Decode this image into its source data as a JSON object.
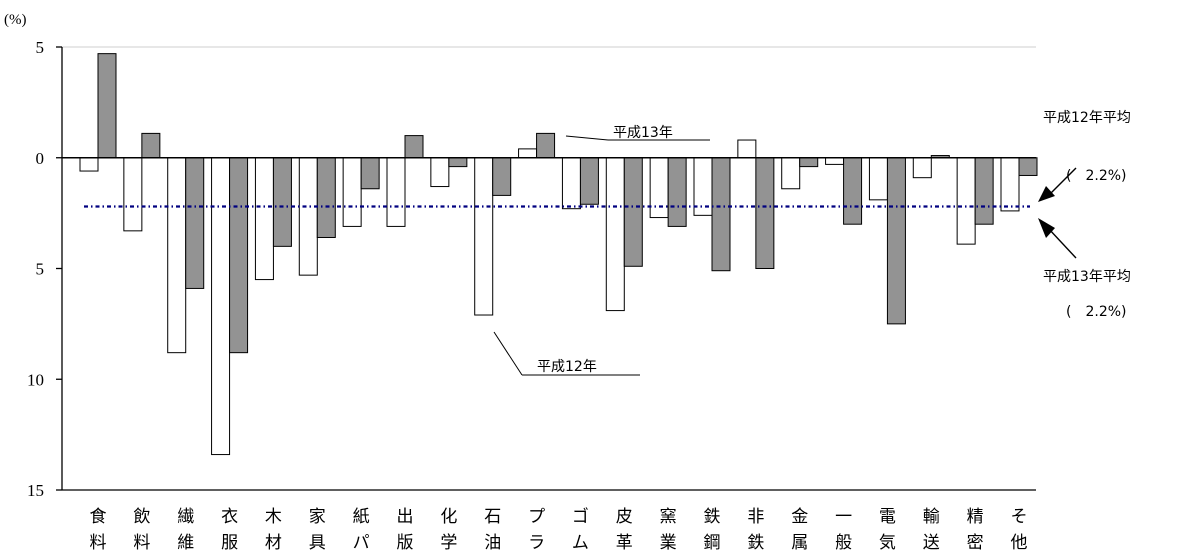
{
  "chart_data": {
    "type": "bar",
    "unit_label": "(%)",
    "y_tick_labels": [
      "5",
      "0",
      "5",
      "10",
      "15"
    ],
    "y_tick_values": [
      5,
      0,
      -5,
      -10,
      -15
    ],
    "ylim": [
      -15,
      5
    ],
    "grid": false,
    "categories": [
      [
        "食",
        "料"
      ],
      [
        "飲",
        "料"
      ],
      [
        "繊",
        "維"
      ],
      [
        "衣",
        "服"
      ],
      [
        "木",
        "材"
      ],
      [
        "家",
        "具"
      ],
      [
        "紙",
        "パ"
      ],
      [
        "出",
        "版"
      ],
      [
        "化",
        "学"
      ],
      [
        "石",
        "油"
      ],
      [
        "プ",
        "ラ"
      ],
      [
        "ゴ",
        "ム"
      ],
      [
        "皮",
        "革"
      ],
      [
        "窯",
        "業"
      ],
      [
        "鉄",
        "鋼"
      ],
      [
        "非",
        "鉄"
      ],
      [
        "金",
        "属"
      ],
      [
        "一",
        "般"
      ],
      [
        "電",
        "気"
      ],
      [
        "輸",
        "送"
      ],
      [
        "精",
        "密"
      ],
      [
        "そ",
        "他"
      ]
    ],
    "series": [
      {
        "name": "平成12年",
        "color": "#ffffff",
        "values": [
          -0.6,
          -3.3,
          -8.8,
          -13.4,
          -5.5,
          -5.3,
          -3.1,
          -3.1,
          -1.3,
          -7.1,
          0.4,
          -2.3,
          -6.9,
          -2.7,
          -2.6,
          0.8,
          -1.4,
          -0.3,
          -1.9,
          -0.9,
          -3.9,
          -2.4
        ]
      },
      {
        "name": "平成13年",
        "color": "#939393",
        "values": [
          4.7,
          1.1,
          -5.9,
          -8.8,
          -4.0,
          -3.6,
          -1.4,
          1.0,
          -0.4,
          -1.7,
          1.1,
          -2.1,
          -4.9,
          -3.1,
          -5.1,
          -5.0,
          -0.4,
          -3.0,
          -7.5,
          0.1,
          -3.0,
          -0.8
        ]
      }
    ],
    "reference_line": {
      "value": -2.2,
      "color": "#000080"
    },
    "annotations": {
      "series_label_2001": "平成13年",
      "series_label_2000": "平成12年",
      "avg_2000_title": "平成12年平均",
      "avg_2000_value": "(　2.2%)",
      "avg_2001_title": "平成13年平均",
      "avg_2001_value": "(　2.2%)"
    }
  }
}
